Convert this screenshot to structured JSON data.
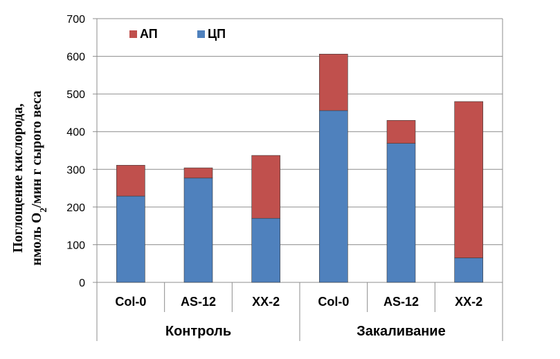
{
  "chart_data": {
    "type": "bar",
    "stacked": true,
    "ylabel_line1": "Поглощение кислорода,",
    "ylabel_line2_pre": "нмоль  O",
    "ylabel_line2_sub": "2",
    "ylabel_line2_post": "/мин г сырого веса",
    "ylim": [
      0,
      700
    ],
    "yticks": [
      "0",
      "100",
      "200",
      "300",
      "400",
      "500",
      "600",
      "700"
    ],
    "grid": true,
    "legend_position": "top-left",
    "categories": [
      "Col-0",
      "AS-12",
      "XX-2",
      "Col-0",
      "AS-12",
      "XX-2"
    ],
    "groups": [
      {
        "label": "Контроль",
        "span": 3
      },
      {
        "label": "Закаливание",
        "span": 3
      }
    ],
    "series": [
      {
        "name": "ЦП",
        "color": "#4f81bd",
        "values": [
          229,
          277,
          170,
          456,
          369,
          65
        ]
      },
      {
        "name": "АП",
        "color": "#c0504d",
        "values": [
          82,
          27,
          167,
          150,
          61,
          415
        ]
      }
    ],
    "legend": [
      {
        "name": "АП",
        "color": "#c0504d"
      },
      {
        "name": "ЦП",
        "color": "#4f81bd"
      }
    ]
  }
}
